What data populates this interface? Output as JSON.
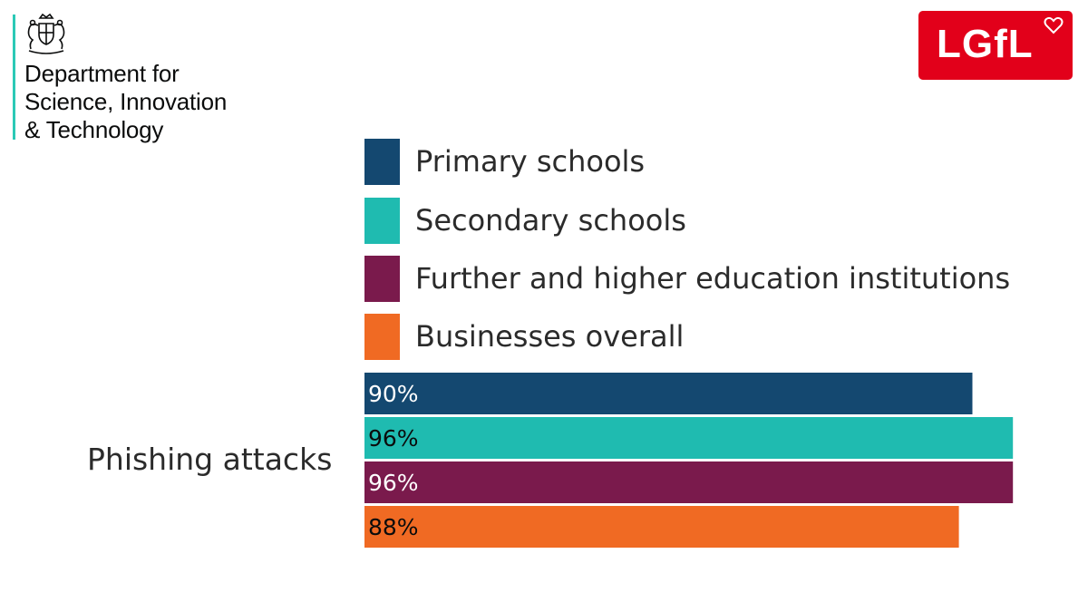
{
  "header": {
    "org_lines": [
      "Department for",
      "Science, Innovation",
      "& Technology"
    ],
    "partner_logo": "LGfL",
    "crest_icon": "royal-coat-of-arms-icon",
    "heart_icon": "heart-icon",
    "colors": {
      "accent_bar": "#2bc9b6",
      "lgfl_red": "#e2001a"
    }
  },
  "chart_data": {
    "type": "bar",
    "orientation": "horizontal",
    "categories": [
      "Phishing attacks"
    ],
    "series": [
      {
        "name": "Primary schools",
        "values": [
          90
        ],
        "label": "90%",
        "color": "#144870",
        "label_color": "#ffffff"
      },
      {
        "name": "Secondary schools",
        "values": [
          96
        ],
        "label": "96%",
        "color": "#1fbbb0",
        "label_color": "#0b0c0c"
      },
      {
        "name": "Further and higher education institutions",
        "values": [
          96
        ],
        "label": "96%",
        "color": "#7a1a4c",
        "label_color": "#ffffff"
      },
      {
        "name": "Businesses overall",
        "values": [
          88
        ],
        "label": "88%",
        "color": "#f06a23",
        "label_color": "#0b0c0c"
      }
    ],
    "xlim": [
      0,
      100
    ],
    "grid": false,
    "legend_position": "top",
    "title": "",
    "xlabel": "",
    "ylabel": ""
  }
}
